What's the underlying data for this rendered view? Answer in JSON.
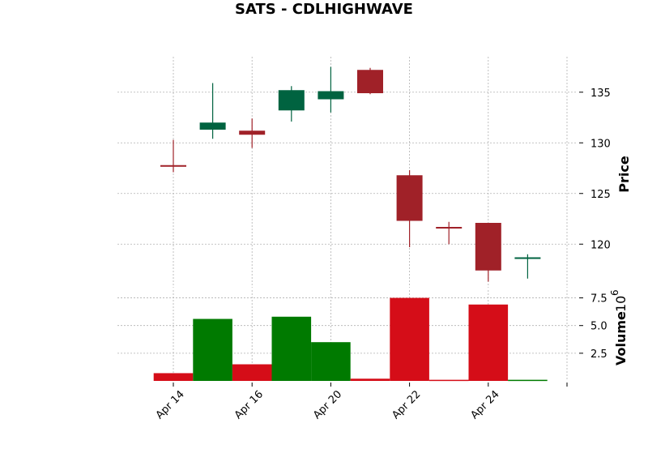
{
  "chart_data": {
    "type": "candlestick",
    "title": "SATS - CDLHIGHWAVE",
    "price_label": "Price",
    "volume_label": "Volume",
    "volume_exponent_base": "10",
    "volume_exponent": "6",
    "x_tick_labels": [
      "Apr 14",
      "Apr 16",
      "Apr 20",
      "Apr 22",
      "Apr 24"
    ],
    "price_ticks": [
      "120",
      "125",
      "130",
      "135"
    ],
    "volume_ticks": [
      "2.5",
      "5.0",
      "7.5"
    ],
    "price_range": [
      115.7,
      138.5
    ],
    "volume_range": [
      0,
      8.2
    ],
    "colors": {
      "up": "#006340",
      "down": "#a02128",
      "volume_up": "#007a00",
      "volume_down": "#d50d18"
    },
    "candles": [
      {
        "open": 127.8,
        "high": 130.3,
        "low": 127.1,
        "close": 127.8,
        "volume": 0.7,
        "direction": "down"
      },
      {
        "open": 132.0,
        "high": 135.9,
        "low": 130.4,
        "close": 131.3,
        "volume": 5.6,
        "direction": "up"
      },
      {
        "open": 131.2,
        "high": 132.4,
        "low": 129.5,
        "close": 130.8,
        "volume": 1.5,
        "direction": "down"
      },
      {
        "open": 135.2,
        "high": 135.6,
        "low": 132.1,
        "close": 133.2,
        "volume": 5.8,
        "direction": "up"
      },
      {
        "open": 134.3,
        "high": 137.5,
        "low": 133.0,
        "close": 135.1,
        "volume": 3.5,
        "direction": "up"
      },
      {
        "open": 137.2,
        "high": 137.4,
        "low": 134.8,
        "close": 134.9,
        "volume": 0.2,
        "direction": "down"
      },
      {
        "open": 126.8,
        "high": 127.3,
        "low": 119.7,
        "close": 122.3,
        "volume": 7.5,
        "direction": "down"
      },
      {
        "open": 121.6,
        "high": 122.2,
        "low": 120.0,
        "close": 121.7,
        "volume": 0.1,
        "direction": "down"
      },
      {
        "open": 122.1,
        "high": 122.1,
        "low": 116.3,
        "close": 117.4,
        "volume": 6.9,
        "direction": "down"
      },
      {
        "open": 118.7,
        "high": 119.0,
        "low": 116.6,
        "close": 118.7,
        "volume": 0.1,
        "direction": "up"
      }
    ]
  }
}
